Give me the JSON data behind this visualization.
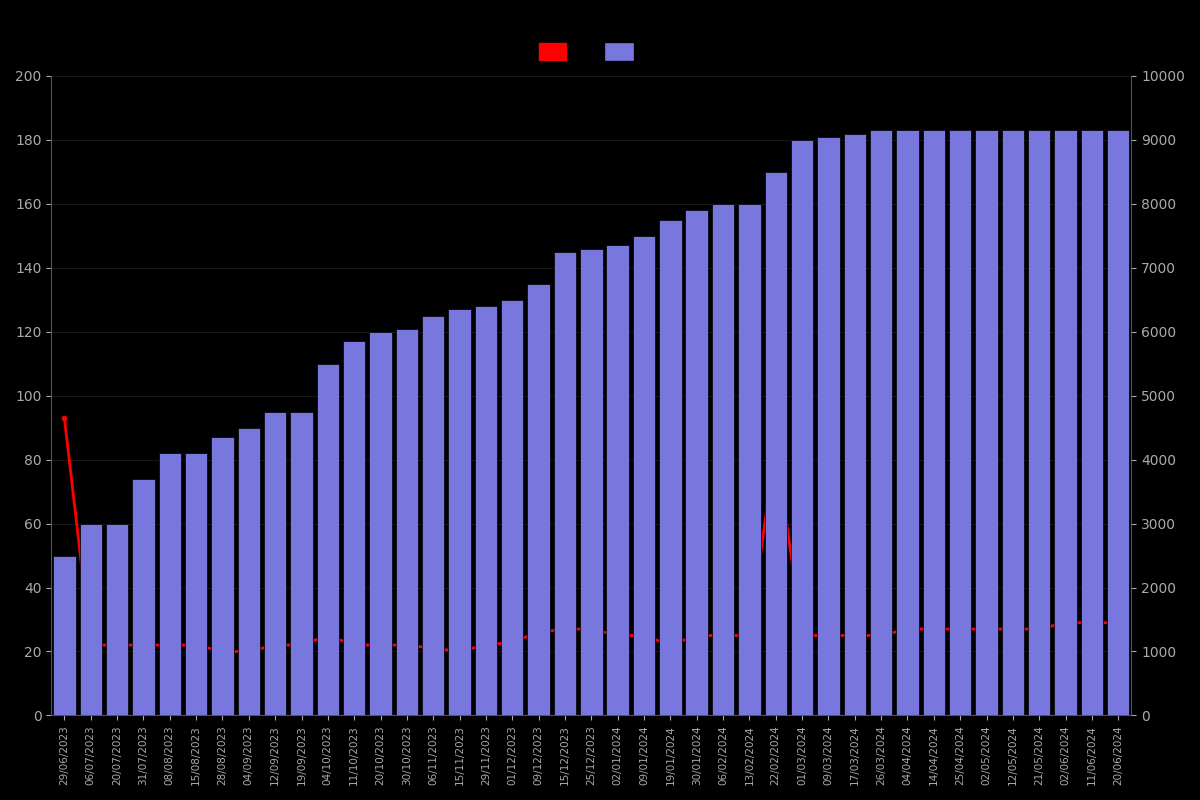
{
  "dates": [
    "29/06/2023",
    "06/07/2023",
    "20/07/2023",
    "31/07/2023",
    "08/08/2023",
    "15/08/2023",
    "28/08/2023",
    "04/09/2023",
    "12/09/2023",
    "19/09/2023",
    "04/10/2023",
    "11/10/2023",
    "20/10/2023",
    "30/10/2023",
    "06/11/2023",
    "15/11/2023",
    "29/11/2023",
    "01/12/2023",
    "09/12/2023",
    "15/12/2023",
    "25/12/2023",
    "02/01/2024",
    "09/01/2024",
    "19/01/2024",
    "30/01/2024",
    "06/02/2024",
    "13/02/2024",
    "22/02/2024",
    "01/03/2024",
    "09/03/2024",
    "17/03/2024",
    "26/03/2024",
    "04/04/2024",
    "14/04/2024",
    "25/04/2024",
    "02/05/2024",
    "12/05/2024",
    "21/05/2024",
    "02/06/2024",
    "11/06/2024",
    "20/06/2024"
  ],
  "bar_values": [
    2500,
    3000,
    3000,
    3700,
    4100,
    4100,
    4350,
    4500,
    4750,
    4750,
    5500,
    5850,
    6000,
    6050,
    6250,
    6350,
    6400,
    6500,
    6750,
    7250,
    7300,
    7350,
    7500,
    7750,
    7900,
    8000,
    8000,
    8500,
    9000,
    9050,
    9100,
    9150,
    9150,
    9150,
    9150,
    9150,
    9150,
    9150,
    9150,
    9150,
    9150
  ],
  "line_values": [
    93,
    22,
    22,
    22,
    22,
    22,
    20,
    20,
    22,
    22,
    25,
    22,
    22,
    22,
    21,
    20,
    22,
    23,
    26,
    27,
    27,
    25,
    25,
    22,
    25,
    25,
    25,
    85,
    25,
    25,
    25,
    25,
    27,
    27,
    27,
    27,
    27,
    27,
    29,
    29,
    29
  ],
  "bar_color": "#7777dd",
  "bar_edge_color": "#000000",
  "line_color": "#ff0000",
  "background_color": "#000000",
  "text_color": "#aaaaaa",
  "left_ylim": [
    0,
    200
  ],
  "right_ylim": [
    0,
    10000
  ],
  "right_yticks": [
    0,
    1000,
    2000,
    3000,
    4000,
    5000,
    6000,
    7000,
    8000,
    9000,
    10000
  ],
  "left_yticks": [
    0,
    20,
    40,
    60,
    80,
    100,
    120,
    140,
    160,
    180,
    200
  ],
  "figsize": [
    12,
    8
  ],
  "dpi": 100
}
